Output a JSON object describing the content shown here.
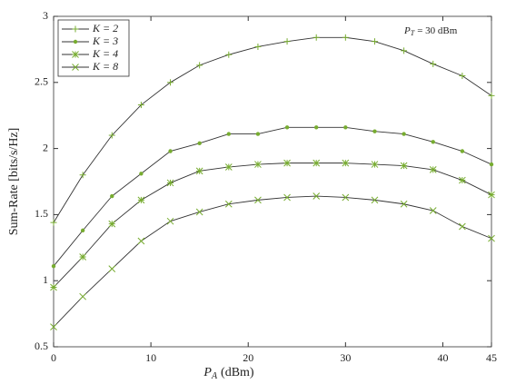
{
  "chart_data": {
    "type": "line",
    "xlabel": {
      "symbol": "P",
      "subscript": "A",
      "unit": "(dBm)"
    },
    "ylabel": "Sum-Rate [bits/s/Hz]",
    "annotation": {
      "symbol": "P",
      "subscript": "T",
      "text": "= 30 dBm"
    },
    "x": [
      0,
      3,
      6,
      9,
      12,
      15,
      18,
      21,
      24,
      27,
      30,
      33,
      36,
      39,
      42,
      45
    ],
    "xlim": [
      0,
      45
    ],
    "xticks": [
      0,
      10,
      20,
      30,
      40,
      45
    ],
    "ylim": [
      0.5,
      3
    ],
    "yticks": [
      0.5,
      1,
      1.5,
      2,
      2.5,
      3
    ],
    "line_color": "#333333",
    "legend": "upper left",
    "series": [
      {
        "name": "K = 2",
        "color": "#77ac30",
        "marker": "plus",
        "values": [
          1.44,
          1.8,
          2.1,
          2.33,
          2.5,
          2.63,
          2.71,
          2.77,
          2.81,
          2.84,
          2.84,
          2.81,
          2.74,
          2.64,
          2.55,
          2.4
        ]
      },
      {
        "name": "K = 3",
        "color": "#77ac30",
        "marker": "dot",
        "values": [
          1.11,
          1.38,
          1.64,
          1.81,
          1.98,
          2.04,
          2.11,
          2.11,
          2.16,
          2.16,
          2.16,
          2.13,
          2.11,
          2.05,
          1.98,
          1.88
        ]
      },
      {
        "name": "K = 4",
        "color": "#77ac30",
        "marker": "asterisk",
        "values": [
          0.95,
          1.18,
          1.43,
          1.61,
          1.74,
          1.83,
          1.86,
          1.88,
          1.89,
          1.89,
          1.89,
          1.88,
          1.87,
          1.84,
          1.76,
          1.65
        ]
      },
      {
        "name": "K = 8",
        "color": "#77ac30",
        "marker": "x",
        "values": [
          0.65,
          0.88,
          1.09,
          1.3,
          1.45,
          1.52,
          1.58,
          1.61,
          1.63,
          1.64,
          1.63,
          1.61,
          1.58,
          1.53,
          1.41,
          1.32
        ]
      }
    ]
  }
}
